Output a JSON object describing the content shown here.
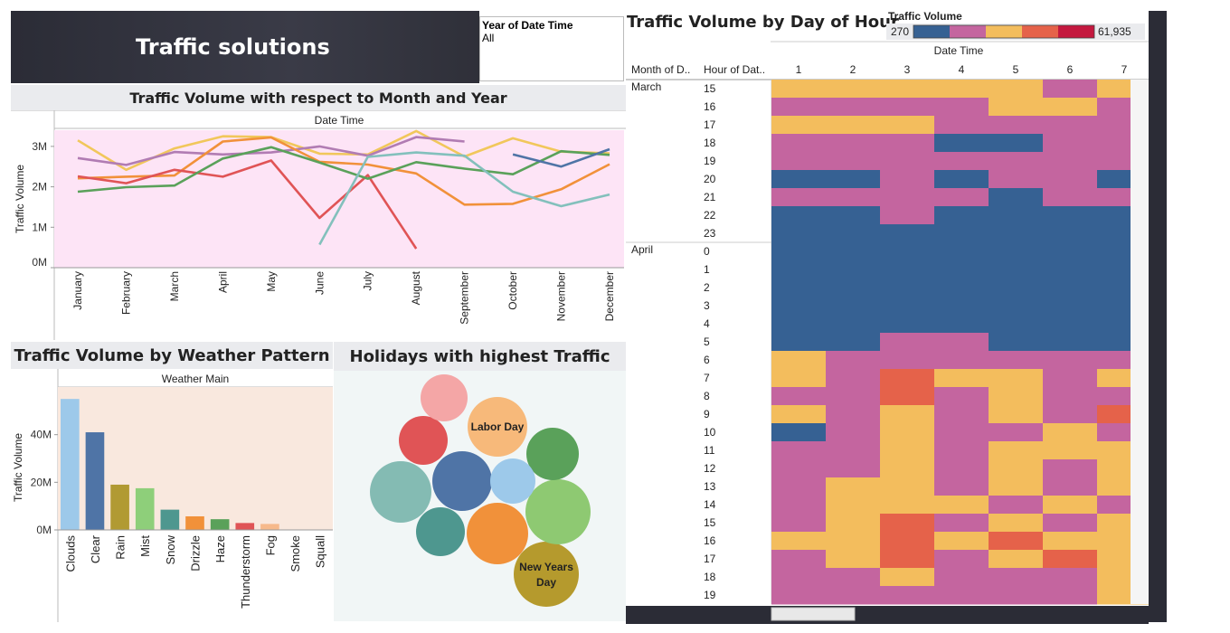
{
  "title": "Traffic solutions",
  "filter": {
    "label": "Year of Date Time",
    "value": "All"
  },
  "line_panel": {
    "title": "Traffic Volume with respect to Month and Year",
    "header": "Date Time"
  },
  "weather_panel": {
    "title": "Traffic Volume by Weather Pattern",
    "header": "Weather Main"
  },
  "holiday_panel": {
    "title": "Holidays with highest Traffic"
  },
  "heat_panel": {
    "title": "Traffic Volume by Day of Hour",
    "legend_title": "Traffic Volume",
    "legend_min": "270",
    "legend_max": "61,935",
    "header": "Date Time",
    "col_month_label": "Month of D..",
    "col_hour_label": "Hour of Dat.."
  },
  "chart_data": [
    {
      "type": "line",
      "title": "Traffic Volume with respect to Month and Year",
      "xlabel": "Date Time",
      "ylabel": "Traffic Volume",
      "categories": [
        "January",
        "February",
        "March",
        "April",
        "May",
        "June",
        "July",
        "August",
        "September",
        "October",
        "November",
        "December"
      ],
      "y_ticks": [
        "3M",
        "2M",
        "1M",
        "0M"
      ],
      "ylim": [
        0,
        3400000
      ],
      "background": "#fde4f6",
      "series": [
        {
          "color": "#f1c75b",
          "values": [
            3150000,
            2420000,
            2950000,
            3250000,
            3230000,
            2820000,
            2800000,
            3380000,
            2750000,
            3200000,
            2870000,
            2830000
          ]
        },
        {
          "color": "#b17cb3",
          "values": [
            2710000,
            2540000,
            2860000,
            2800000,
            2850000,
            3000000,
            2770000,
            3230000,
            3120000,
            null,
            null,
            null
          ]
        },
        {
          "color": "#f1913a",
          "values": [
            2210000,
            2250000,
            2280000,
            3120000,
            3220000,
            2620000,
            2550000,
            2330000,
            1560000,
            1580000,
            1940000,
            2560000
          ]
        },
        {
          "color": "#e05456",
          "values": [
            2260000,
            2090000,
            2420000,
            2250000,
            2650000,
            1230000,
            2290000,
            470000,
            null,
            null,
            null,
            null
          ]
        },
        {
          "color": "#5aa15a",
          "values": [
            1880000,
            1990000,
            2030000,
            2700000,
            2980000,
            2600000,
            2200000,
            2610000,
            2450000,
            2310000,
            2880000,
            2790000
          ]
        },
        {
          "color": "#83c0bc",
          "values": [
            null,
            null,
            null,
            null,
            null,
            570000,
            2740000,
            2850000,
            2770000,
            1880000,
            1520000,
            1810000
          ]
        },
        {
          "color": "#4f74a6",
          "values": [
            null,
            null,
            null,
            null,
            null,
            null,
            null,
            null,
            null,
            2800000,
            2500000,
            2930000
          ]
        }
      ]
    },
    {
      "type": "bar",
      "title": "Traffic Volume by Weather Pattern",
      "xlabel": "Weather Main",
      "ylabel": "Traffic Volume",
      "categories": [
        "Clouds",
        "Clear",
        "Rain",
        "Mist",
        "Snow",
        "Drizzle",
        "Haze",
        "Thunderstorm",
        "Fog",
        "Smoke",
        "Squall"
      ],
      "values": [
        55000000,
        41000000,
        19000000,
        17500000,
        8500000,
        5700000,
        4500000,
        2900000,
        2500000,
        100000,
        0
      ],
      "colors": [
        "#9dc9ea",
        "#4f74a6",
        "#b19a33",
        "#8ecf7a",
        "#4e978f",
        "#f1913a",
        "#5aa15a",
        "#e05456",
        "#f7b98b",
        "#f4a6a6",
        "#bbbbbb"
      ],
      "y_ticks": [
        "40M",
        "20M",
        "0M"
      ],
      "ylim": [
        0,
        60000000
      ],
      "background": "#f9e8de"
    },
    {
      "type": "bubble",
      "title": "Holidays with highest Traffic",
      "labels": [
        "Labor Day",
        "New Years Day"
      ],
      "bubbles": [
        {
          "name": "Labor Day",
          "size": 33,
          "color": "#f7b97a",
          "label": "Labor Day"
        },
        {
          "name": "New Years Day",
          "size": 36,
          "color": "#b59a2d",
          "label": "New Years Day"
        },
        {
          "name": "",
          "size": 36,
          "color": "#8ec972"
        },
        {
          "name": "",
          "size": 34,
          "color": "#84bbb3"
        },
        {
          "name": "",
          "size": 34,
          "color": "#f1913a"
        },
        {
          "name": "",
          "size": 33,
          "color": "#4f74a6"
        },
        {
          "name": "",
          "size": 29,
          "color": "#5aa15a"
        },
        {
          "name": "",
          "size": 27,
          "color": "#e05456"
        },
        {
          "name": "",
          "size": 27,
          "color": "#4e978f"
        },
        {
          "name": "",
          "size": 26,
          "color": "#f4a6a6"
        },
        {
          "name": "",
          "size": 25,
          "color": "#9dc9ea"
        }
      ]
    },
    {
      "type": "heatmap",
      "title": "Traffic Volume by Day of Hour",
      "x": [
        "1",
        "2",
        "3",
        "4",
        "5",
        "6",
        "7"
      ],
      "legend_colors": [
        "#366193",
        "#c4659f",
        "#f3bd5d",
        "#e5624a",
        "#c4183f"
      ],
      "rows": [
        {
          "month": "March",
          "hour": "15",
          "cells": [
            2,
            2,
            2,
            2,
            2,
            1,
            2
          ]
        },
        {
          "month": "",
          "hour": "16",
          "cells": [
            1,
            1,
            1,
            1,
            2,
            2,
            1
          ]
        },
        {
          "month": "",
          "hour": "17",
          "cells": [
            2,
            2,
            2,
            1,
            1,
            1,
            1
          ]
        },
        {
          "month": "",
          "hour": "18",
          "cells": [
            1,
            1,
            1,
            0,
            0,
            1,
            1
          ]
        },
        {
          "month": "",
          "hour": "19",
          "cells": [
            1,
            1,
            1,
            1,
            1,
            1,
            1
          ]
        },
        {
          "month": "",
          "hour": "20",
          "cells": [
            0,
            0,
            1,
            0,
            1,
            1,
            0
          ]
        },
        {
          "month": "",
          "hour": "21",
          "cells": [
            1,
            1,
            1,
            1,
            0,
            1,
            1
          ]
        },
        {
          "month": "",
          "hour": "22",
          "cells": [
            0,
            0,
            1,
            0,
            0,
            0,
            0
          ]
        },
        {
          "month": "",
          "hour": "23",
          "cells": [
            0,
            0,
            0,
            0,
            0,
            0,
            0
          ]
        },
        {
          "month": "April",
          "hour": "0",
          "cells": [
            0,
            0,
            0,
            0,
            0,
            0,
            0
          ]
        },
        {
          "month": "",
          "hour": "1",
          "cells": [
            0,
            0,
            0,
            0,
            0,
            0,
            0
          ]
        },
        {
          "month": "",
          "hour": "2",
          "cells": [
            0,
            0,
            0,
            0,
            0,
            0,
            0
          ]
        },
        {
          "month": "",
          "hour": "3",
          "cells": [
            0,
            0,
            0,
            0,
            0,
            0,
            0
          ]
        },
        {
          "month": "",
          "hour": "4",
          "cells": [
            0,
            0,
            0,
            0,
            0,
            0,
            0
          ]
        },
        {
          "month": "",
          "hour": "5",
          "cells": [
            0,
            0,
            1,
            1,
            0,
            0,
            0
          ]
        },
        {
          "month": "",
          "hour": "6",
          "cells": [
            2,
            1,
            1,
            1,
            1,
            1,
            1
          ]
        },
        {
          "month": "",
          "hour": "7",
          "cells": [
            2,
            1,
            3,
            2,
            2,
            1,
            2
          ]
        },
        {
          "month": "",
          "hour": "8",
          "cells": [
            1,
            1,
            3,
            1,
            2,
            1,
            1
          ]
        },
        {
          "month": "",
          "hour": "9",
          "cells": [
            2,
            1,
            2,
            1,
            2,
            1,
            3
          ]
        },
        {
          "month": "",
          "hour": "10",
          "cells": [
            0,
            1,
            2,
            1,
            1,
            2,
            1
          ]
        },
        {
          "month": "",
          "hour": "11",
          "cells": [
            1,
            1,
            2,
            1,
            2,
            2,
            2
          ]
        },
        {
          "month": "",
          "hour": "12",
          "cells": [
            1,
            1,
            2,
            1,
            2,
            1,
            2
          ]
        },
        {
          "month": "",
          "hour": "13",
          "cells": [
            1,
            2,
            2,
            1,
            2,
            1,
            2
          ]
        },
        {
          "month": "",
          "hour": "14",
          "cells": [
            1,
            2,
            2,
            2,
            1,
            2,
            1
          ]
        },
        {
          "month": "",
          "hour": "15",
          "cells": [
            1,
            2,
            3,
            1,
            2,
            1,
            2
          ]
        },
        {
          "month": "",
          "hour": "16",
          "cells": [
            2,
            2,
            3,
            2,
            3,
            2,
            2
          ]
        },
        {
          "month": "",
          "hour": "17",
          "cells": [
            1,
            2,
            3,
            1,
            2,
            3,
            2
          ]
        },
        {
          "month": "",
          "hour": "18",
          "cells": [
            1,
            1,
            2,
            1,
            1,
            1,
            2
          ]
        },
        {
          "month": "",
          "hour": "19",
          "cells": [
            1,
            1,
            1,
            1,
            1,
            1,
            2
          ]
        }
      ]
    }
  ]
}
